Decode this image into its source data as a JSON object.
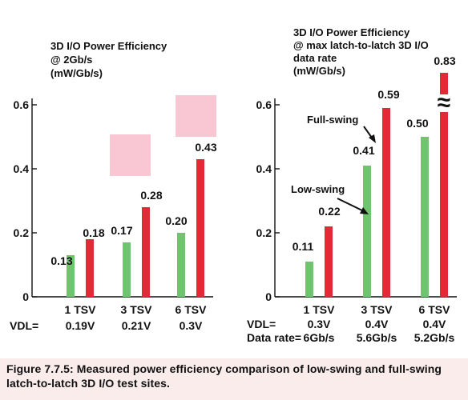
{
  "caption": "Figure 7.7.5: Measured power efficiency comparison of low-swing and full-swing latch-to-latch 3D I/O test sites.",
  "colors": {
    "low_swing": "#6fc56f",
    "full_swing": "#e02b36",
    "highlight": "#f9c6d4",
    "caption_band": "#fbecec"
  },
  "chart_data": [
    {
      "type": "bar",
      "title": "3D I/O Power Efficiency\n@ 2Gb/s\n(mW/Gb/s)",
      "ylim": [
        0,
        0.6
      ],
      "yticks": [
        0,
        0.2,
        0.4,
        0.6
      ],
      "ytick_labels": [
        "0",
        "0.2",
        "0.4",
        "0.6"
      ],
      "grid": false,
      "legend": "none",
      "categories": [
        "1 TSV",
        "3 TSV",
        "6 TSV"
      ],
      "category_sublabels": [
        {
          "label": "VDL=",
          "values": [
            "0.19V",
            "0.21V",
            "0.3V"
          ]
        }
      ],
      "series": [
        {
          "color": "#6fc56f",
          "values": [
            0.13,
            0.17,
            0.2
          ],
          "labels": [
            "0.13",
            "0.17",
            "0.20"
          ]
        },
        {
          "color": "#e02b36",
          "values": [
            0.18,
            0.28,
            0.43
          ],
          "labels": [
            "0.18",
            "0.28",
            "0.43"
          ]
        }
      ],
      "highlights": [
        {
          "category": "3 TSV"
        },
        {
          "category": "6 TSV"
        }
      ]
    },
    {
      "type": "bar",
      "title": "3D I/O Power Efficiency\n@ max latch-to-latch 3D I/O\ndata rate\n(mW/Gb/s)",
      "ylim": [
        0,
        0.6
      ],
      "yticks": [
        0,
        0.2,
        0.4,
        0.6
      ],
      "ytick_labels": [
        "0",
        "0.2",
        "0.4",
        "0.6"
      ],
      "grid": false,
      "legend": "none",
      "categories": [
        "1 TSV",
        "3 TSV",
        "6 TSV"
      ],
      "category_sublabels": [
        {
          "label": "VDL=",
          "values": [
            "0.3V",
            "0.4V",
            "0.4V"
          ]
        },
        {
          "label": "Data rate=",
          "values": [
            "6Gb/s",
            "5.6Gb/s",
            "5.2Gb/s"
          ]
        }
      ],
      "series": [
        {
          "name": "Low-swing",
          "color": "#6fc56f",
          "values": [
            0.11,
            0.41,
            0.5
          ],
          "labels": [
            "0.11",
            "0.41",
            "0.50"
          ]
        },
        {
          "name": "Full-swing",
          "color": "#e02b36",
          "values": [
            0.22,
            0.59,
            0.83
          ],
          "labels": [
            "0.22",
            "0.59",
            "0.83"
          ]
        }
      ],
      "axis_break": {
        "category": "6 TSV",
        "symbol": "≈"
      }
    }
  ]
}
